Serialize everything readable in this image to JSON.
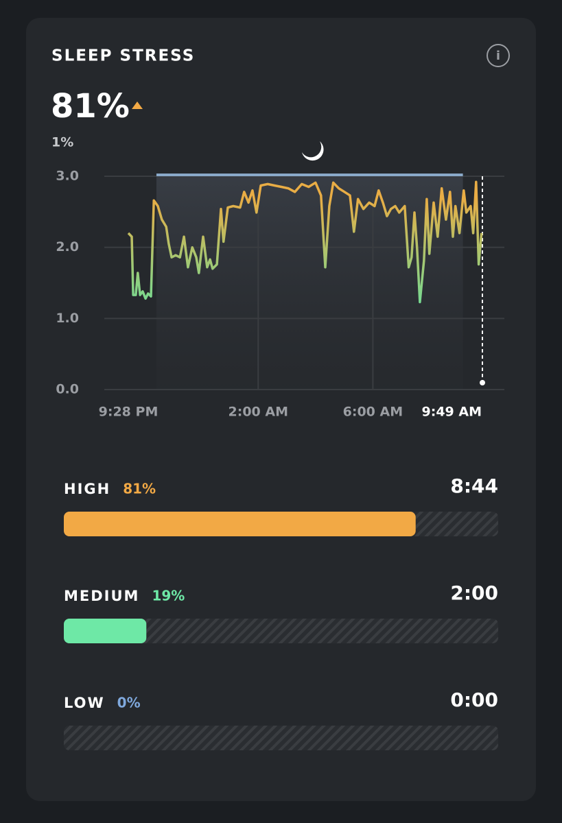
{
  "title": "SLEEP STRESS",
  "score": "81%",
  "change": "1%",
  "chart_data": [
    {
      "type": "line",
      "x": [
        0,
        0.12,
        0.17,
        0.26,
        0.33,
        0.41,
        0.5,
        0.6,
        0.69,
        0.79,
        0.89,
        1.03,
        1.17,
        1.32,
        1.41,
        1.51,
        1.65,
        1.8,
        1.94,
        2.08,
        2.23,
        2.37,
        2.46,
        2.61,
        2.75,
        2.85,
        2.94,
        3.09,
        3.23,
        3.32,
        3.47,
        3.66,
        3.9,
        4.04,
        4.19,
        4.33,
        4.47,
        4.62,
        4.86,
        5.1,
        5.34,
        5.58,
        5.81,
        6.05,
        6.29,
        6.53,
        6.72,
        6.87,
        7.01,
        7.15,
        7.34,
        7.54,
        7.73,
        7.87,
        8.01,
        8.2,
        8.4,
        8.59,
        8.73,
        8.88,
        9.02,
        9.16,
        9.31,
        9.45,
        9.64,
        9.78,
        9.88,
        9.98,
        10.07,
        10.17,
        10.31,
        10.41,
        10.5,
        10.65,
        10.79,
        10.93,
        11.08,
        11.22,
        11.32,
        11.41,
        11.55,
        11.7,
        11.79,
        11.94,
        12.03,
        12.13,
        12.22,
        12.32
      ],
      "series": [
        {
          "colors": [
            "#5fe3a1",
            "#e9ad45"
          ],
          "values": [
            2.2,
            2.15,
            1.33,
            1.33,
            1.64,
            1.33,
            1.38,
            1.28,
            1.35,
            1.31,
            2.66,
            2.58,
            2.39,
            2.29,
            2.05,
            1.86,
            1.89,
            1.86,
            2.15,
            1.72,
            2.0,
            1.86,
            1.64,
            2.15,
            1.72,
            1.83,
            1.7,
            1.76,
            2.54,
            2.08,
            2.56,
            2.58,
            2.56,
            2.78,
            2.63,
            2.8,
            2.49,
            2.87,
            2.89,
            2.87,
            2.85,
            2.83,
            2.78,
            2.89,
            2.85,
            2.91,
            2.73,
            1.72,
            2.58,
            2.91,
            2.83,
            2.78,
            2.73,
            2.22,
            2.68,
            2.54,
            2.63,
            2.58,
            2.8,
            2.63,
            2.44,
            2.54,
            2.58,
            2.49,
            2.58,
            1.72,
            1.86,
            2.49,
            2.0,
            1.23,
            1.81,
            2.68,
            1.91,
            2.63,
            2.15,
            2.83,
            2.39,
            2.78,
            2.15,
            2.58,
            2.2,
            2.8,
            2.49,
            2.58,
            2.2,
            2.92,
            1.76,
            2.2
          ]
        }
      ],
      "xlim": [
        0,
        12.35
      ],
      "xticks": [
        {
          "value": 0,
          "label": "9:28 PM"
        },
        {
          "value": 4.53,
          "label": "2:00 AM"
        },
        {
          "value": 8.53,
          "label": "6:00 AM"
        },
        {
          "value": 12.35,
          "label": "9:49 AM"
        }
      ],
      "ylim": [
        0,
        3
      ],
      "yticks": [
        {
          "value": 0,
          "label": "0.0"
        },
        {
          "value": 1,
          "label": "1.0"
        },
        {
          "value": 2,
          "label": "2.0"
        },
        {
          "value": 3,
          "label": "3.0"
        }
      ],
      "grid": true,
      "sleep_period": [
        0.98,
        11.67
      ],
      "sleep_color": "#8aa9c9"
    },
    {
      "type": "hbar",
      "categories": [
        "HIGH",
        "MEDIUM",
        "LOW"
      ],
      "values": [
        81,
        19,
        0
      ],
      "value_labels": [
        "81%",
        "19%",
        "0%"
      ],
      "durations": [
        "8:44",
        "2:00",
        "0:00"
      ],
      "colors": [
        "#f2a945",
        "#6ee8a6",
        "#7fa8dc"
      ],
      "xlim": [
        0,
        100
      ]
    }
  ]
}
